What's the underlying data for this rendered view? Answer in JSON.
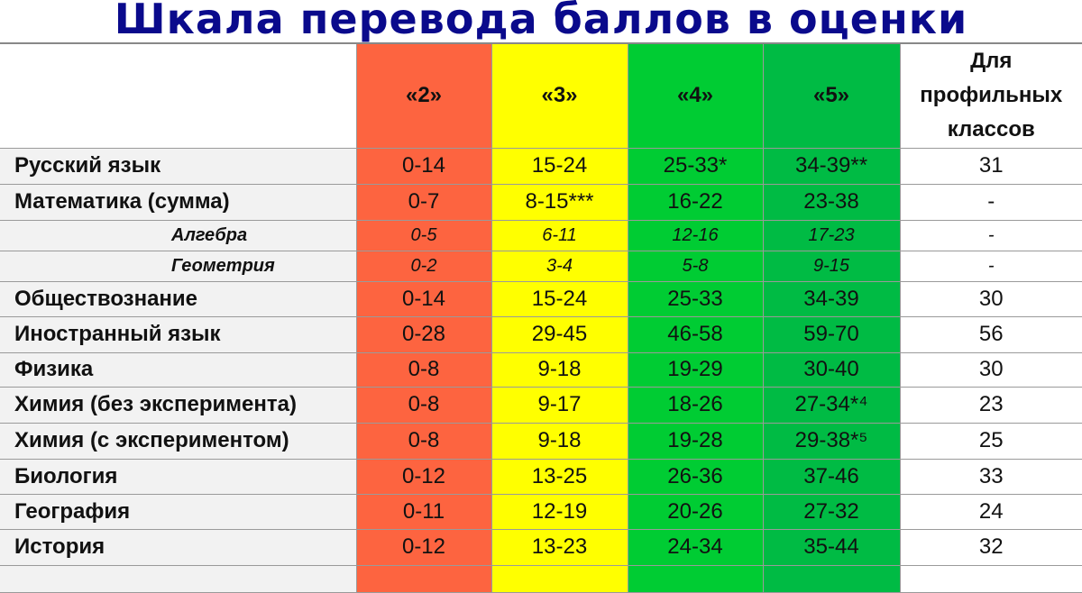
{
  "title": "Шкала перевода баллов в оценки",
  "colors": {
    "grade_2": "#fd6440",
    "grade_3": "#ffff00",
    "grade_4": "#00cc33",
    "grade_5": "#00bb44",
    "title": "#0a0a8c"
  },
  "table": {
    "headers": [
      "",
      "«2»",
      "«3»",
      "«4»",
      "«5»",
      "Для профильных классов"
    ],
    "rows": [
      {
        "subject": "Русский язык",
        "values": [
          "0-14",
          "15-24",
          "25-33*",
          "34-39**",
          "31"
        ]
      },
      {
        "subject": "Математика (сумма)",
        "values": [
          "0-7",
          "8-15***",
          "16-22",
          "23-38",
          "-"
        ]
      },
      {
        "subject": "Алгебра",
        "sub": true,
        "values": [
          "0-5",
          "6-11",
          "12-16",
          "17-23",
          "-"
        ]
      },
      {
        "subject": "Геометрия",
        "sub": true,
        "values": [
          "0-2",
          "3-4",
          "5-8",
          "9-15",
          "-"
        ]
      },
      {
        "subject": "Обществознание",
        "values": [
          "0-14",
          "15-24",
          "25-33",
          "34-39",
          "30"
        ]
      },
      {
        "subject": "Иностранный язык",
        "values": [
          "0-28",
          "29-45",
          "46-58",
          "59-70",
          "56"
        ]
      },
      {
        "subject": "Физика",
        "values": [
          "0-8",
          "9-18",
          "19-29",
          "30-40",
          "30"
        ]
      },
      {
        "subject": "Химия (без эксперимента)",
        "values": [
          "0-8",
          "9-17",
          "18-26",
          "27-34*⁴",
          "23"
        ]
      },
      {
        "subject": "Химия (с экспериментом)",
        "values": [
          "0-8",
          "9-18",
          "19-28",
          "29-38*⁵",
          "25"
        ]
      },
      {
        "subject": "Биология",
        "values": [
          "0-12",
          "13-25",
          "26-36",
          "37-46",
          "33"
        ]
      },
      {
        "subject": "География",
        "values": [
          "0-11",
          "12-19",
          "20-26",
          "27-32",
          "24"
        ]
      },
      {
        "subject": "История",
        "values": [
          "0-12",
          "13-23",
          "24-34",
          "35-44",
          "32"
        ]
      }
    ]
  }
}
